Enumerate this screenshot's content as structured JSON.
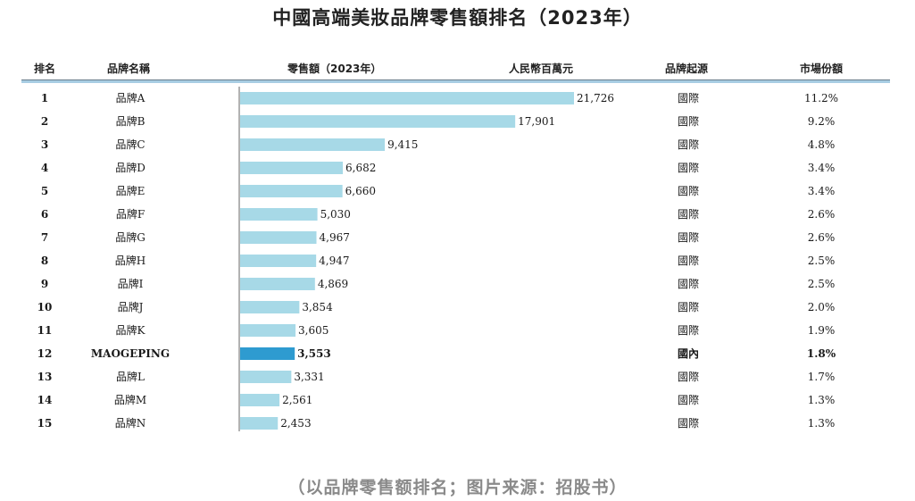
{
  "title": "中國高端美妝品牌零售額排名（2023年）",
  "headers": {
    "rank": "排名",
    "brand": "品牌名稱",
    "sales": "零售額（2023年）",
    "unit": "人民幣百萬元",
    "origin": "品牌起源",
    "share": "市場份額"
  },
  "caption": "（以品牌零售额排名；图片来源：招股书）",
  "colors": {
    "bar": "#a7d9e7",
    "highlight": "#2e9bd0",
    "header_line": "#a8cde3"
  },
  "chart_data": {
    "type": "bar",
    "orientation": "horizontal",
    "title": "中國高端美妝品牌零售額排名（2023年）",
    "xlabel": "零售額（2023年） 人民幣百萬元",
    "ylabel": "品牌名稱",
    "xlim": [
      0,
      22000
    ],
    "highlight_index": 11,
    "rows": [
      {
        "rank": "1",
        "brand": "品牌A",
        "value": 21726,
        "label": "21,726",
        "origin": "國際",
        "share": "11.2%"
      },
      {
        "rank": "2",
        "brand": "品牌B",
        "value": 17901,
        "label": "17,901",
        "origin": "國際",
        "share": "9.2%"
      },
      {
        "rank": "3",
        "brand": "品牌C",
        "value": 9415,
        "label": "9,415",
        "origin": "國際",
        "share": "4.8%"
      },
      {
        "rank": "4",
        "brand": "品牌D",
        "value": 6682,
        "label": "6,682",
        "origin": "國際",
        "share": "3.4%"
      },
      {
        "rank": "5",
        "brand": "品牌E",
        "value": 6660,
        "label": "6,660",
        "origin": "國際",
        "share": "3.4%"
      },
      {
        "rank": "6",
        "brand": "品牌F",
        "value": 5030,
        "label": "5,030",
        "origin": "國際",
        "share": "2.6%"
      },
      {
        "rank": "7",
        "brand": "品牌G",
        "value": 4967,
        "label": "4,967",
        "origin": "國際",
        "share": "2.6%"
      },
      {
        "rank": "8",
        "brand": "品牌H",
        "value": 4947,
        "label": "4,947",
        "origin": "國際",
        "share": "2.5%"
      },
      {
        "rank": "9",
        "brand": "品牌I",
        "value": 4869,
        "label": "4,869",
        "origin": "國際",
        "share": "2.5%"
      },
      {
        "rank": "10",
        "brand": "品牌J",
        "value": 3854,
        "label": "3,854",
        "origin": "國際",
        "share": "2.0%"
      },
      {
        "rank": "11",
        "brand": "品牌K",
        "value": 3605,
        "label": "3,605",
        "origin": "國際",
        "share": "1.9%"
      },
      {
        "rank": "12",
        "brand": "MAOGEPING",
        "value": 3553,
        "label": "3,553",
        "origin": "國內",
        "share": "1.8%"
      },
      {
        "rank": "13",
        "brand": "品牌L",
        "value": 3331,
        "label": "3,331",
        "origin": "國際",
        "share": "1.7%"
      },
      {
        "rank": "14",
        "brand": "品牌M",
        "value": 2561,
        "label": "2,561",
        "origin": "國際",
        "share": "1.3%"
      },
      {
        "rank": "15",
        "brand": "品牌N",
        "value": 2453,
        "label": "2,453",
        "origin": "國際",
        "share": "1.3%"
      }
    ]
  }
}
